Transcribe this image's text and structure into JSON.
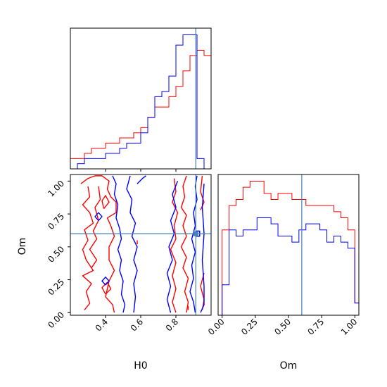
{
  "chart_data": {
    "type": "corner",
    "parameters": [
      "H0",
      "Om"
    ],
    "truth": {
      "H0": 0.913,
      "Om": 0.6
    },
    "colors": {
      "series_a": "#ff0000",
      "series_b": "#0000ff",
      "truth": "#4682b4"
    },
    "panels": [
      {
        "id": "hist-H0",
        "type": "step-histogram",
        "xlim": [
          0.2,
          1.0
        ],
        "bin_width": 0.04,
        "bin_start": 0.2,
        "x_ticks": [
          0.4,
          0.6,
          0.8
        ],
        "series": [
          {
            "color": "#ff0000",
            "values": [
              2,
              2,
              3,
              4,
              4,
              5,
              5,
              6,
              6,
              7,
              8,
              10,
              12,
              12,
              14,
              16,
              19,
              22,
              23,
              22
            ]
          },
          {
            "color": "#0000ff",
            "values": [
              0,
              1,
              2,
              2,
              2,
              3,
              3,
              4,
              5,
              5,
              7,
              10,
              14,
              15,
              18,
              24,
              26,
              26,
              2,
              0
            ]
          }
        ]
      },
      {
        "id": "hist-Om",
        "type": "step-histogram",
        "xlim": [
          -0.03,
          1.03
        ],
        "bin_width": 0.0526,
        "bin_start": 0.0,
        "x_ticks": [
          0.0,
          0.25,
          0.5,
          0.75,
          1.0
        ],
        "x_tick_labels": [
          "0.00",
          "0.25",
          "0.50",
          "0.75",
          "1.00"
        ],
        "x_label": "Om",
        "series": [
          {
            "color": "#ff0000",
            "values": [
              14,
              18,
              19,
              21,
              22,
              22,
              20,
              19,
              20,
              20,
              19,
              19,
              18,
              18,
              18,
              18,
              17,
              16,
              14,
              2
            ]
          },
          {
            "color": "#0000ff",
            "values": [
              5,
              14,
              13,
              14,
              14,
              16,
              16,
              15,
              13,
              13,
              12,
              14,
              15,
              15,
              14,
              12,
              13,
              12,
              11,
              2
            ]
          }
        ]
      },
      {
        "id": "contour-H0-Om",
        "type": "2d-contour",
        "xlim": [
          0.2,
          1.0
        ],
        "ylim": [
          -0.02,
          1.05
        ],
        "x_ticks": [
          0.4,
          0.6,
          0.8
        ],
        "x_tick_labels": [
          "0.4",
          "0.6",
          "0.8"
        ],
        "y_ticks": [
          0.0,
          0.25,
          0.5,
          0.75,
          1.0
        ],
        "y_tick_labels": [
          "0.00",
          "0.25",
          "0.50",
          "0.75",
          "1.00"
        ],
        "x_label": "H0",
        "y_label": "Om",
        "series": [
          {
            "color": "#ff0000",
            "paths": [
              [
                [
                  0.26,
                  0.98
                ],
                [
                  0.3,
                  1.02
                ],
                [
                  0.34,
                  1.04
                ],
                [
                  0.38,
                  1.04
                ],
                [
                  0.42,
                  1.0
                ],
                [
                  0.41,
                  0.94
                ],
                [
                  0.43,
                  0.88
                ],
                [
                  0.46,
                  0.84
                ],
                [
                  0.46,
                  0.76
                ],
                [
                  0.41,
                  0.72
                ],
                [
                  0.43,
                  0.66
                ],
                [
                  0.45,
                  0.58
                ],
                [
                  0.42,
                  0.5
                ],
                [
                  0.42,
                  0.4
                ],
                [
                  0.45,
                  0.32
                ],
                [
                  0.42,
                  0.24
                ],
                [
                  0.4,
                  0.12
                ],
                [
                  0.44,
                  0.06
                ],
                [
                  0.45,
                  0.0
                ]
              ],
              [
                [
                  0.28,
                  0.02
                ],
                [
                  0.31,
                  0.07
                ],
                [
                  0.29,
                  0.16
                ],
                [
                  0.32,
                  0.22
                ],
                [
                  0.27,
                  0.28
                ],
                [
                  0.33,
                  0.32
                ],
                [
                  0.29,
                  0.4
                ],
                [
                  0.27,
                  0.48
                ],
                [
                  0.3,
                  0.55
                ],
                [
                  0.28,
                  0.63
                ],
                [
                  0.33,
                  0.68
                ],
                [
                  0.31,
                  0.76
                ],
                [
                  0.27,
                  0.82
                ],
                [
                  0.31,
                  0.88
                ],
                [
                  0.3,
                  0.96
                ]
              ],
              [
                [
                  0.32,
                  0.34
                ],
                [
                  0.35,
                  0.4
                ],
                [
                  0.31,
                  0.48
                ],
                [
                  0.35,
                  0.56
                ],
                [
                  0.33,
                  0.62
                ],
                [
                  0.36,
                  0.7
                ],
                [
                  0.34,
                  0.8
                ],
                [
                  0.37,
                  0.86
                ],
                [
                  0.36,
                  0.96
                ]
              ],
              [
                [
                  0.4,
                  0.14
                ],
                [
                  0.43,
                  0.18
                ],
                [
                  0.41,
                  0.23
                ],
                [
                  0.38,
                  0.19
                ],
                [
                  0.4,
                  0.14
                ]
              ],
              [
                [
                  0.39,
                  0.79
                ],
                [
                  0.42,
                  0.84
                ],
                [
                  0.4,
                  0.89
                ],
                [
                  0.38,
                  0.85
                ],
                [
                  0.39,
                  0.79
                ]
              ],
              [
                [
                  0.79,
                  1.02
                ],
                [
                  0.8,
                  0.92
                ],
                [
                  0.78,
                  0.84
                ],
                [
                  0.81,
                  0.76
                ],
                [
                  0.79,
                  0.66
                ],
                [
                  0.8,
                  0.56
                ],
                [
                  0.77,
                  0.48
                ],
                [
                  0.8,
                  0.38
                ],
                [
                  0.78,
                  0.28
                ],
                [
                  0.8,
                  0.18
                ],
                [
                  0.78,
                  0.08
                ],
                [
                  0.8,
                  0.0
                ]
              ],
              [
                [
                  0.86,
                  1.04
                ],
                [
                  0.84,
                  0.96
                ],
                [
                  0.85,
                  0.88
                ],
                [
                  0.83,
                  0.8
                ],
                [
                  0.86,
                  0.74
                ],
                [
                  0.84,
                  0.66
                ],
                [
                  0.86,
                  0.58
                ],
                [
                  0.83,
                  0.5
                ],
                [
                  0.86,
                  0.42
                ],
                [
                  0.84,
                  0.34
                ],
                [
                  0.87,
                  0.26
                ],
                [
                  0.85,
                  0.16
                ],
                [
                  0.87,
                  0.08
                ],
                [
                  0.86,
                  0.0
                ]
              ],
              [
                [
                  0.95,
                  1.04
                ],
                [
                  0.94,
                  0.92
                ],
                [
                  0.96,
                  0.84
                ],
                [
                  0.94,
                  0.78
                ]
              ],
              [
                [
                  0.96,
                  0.3
                ],
                [
                  0.94,
                  0.2
                ],
                [
                  0.96,
                  0.1
                ],
                [
                  0.95,
                  0.02
                ]
              ],
              [
                [
                  0.58,
                  0.52
                ],
                [
                  0.58,
                  0.55
                ]
              ],
              [
                [
                  0.87,
                  0.02
                ],
                [
                  0.87,
                  0.05
                ]
              ]
            ]
          },
          {
            "color": "#0000ff",
            "paths": [
              [
                [
                  0.44,
                  1.04
                ],
                [
                  0.46,
                  0.98
                ],
                [
                  0.45,
                  0.9
                ],
                [
                  0.47,
                  0.82
                ],
                [
                  0.46,
                  0.72
                ],
                [
                  0.48,
                  0.64
                ],
                [
                  0.49,
                  0.56
                ],
                [
                  0.47,
                  0.48
                ],
                [
                  0.49,
                  0.4
                ],
                [
                  0.48,
                  0.32
                ],
                [
                  0.5,
                  0.24
                ],
                [
                  0.49,
                  0.14
                ],
                [
                  0.51,
                  0.06
                ],
                [
                  0.5,
                  0.0
                ]
              ],
              [
                [
                  0.54,
                  1.04
                ],
                [
                  0.52,
                  0.94
                ],
                [
                  0.55,
                  0.86
                ],
                [
                  0.54,
                  0.76
                ],
                [
                  0.57,
                  0.68
                ],
                [
                  0.55,
                  0.58
                ],
                [
                  0.58,
                  0.5
                ],
                [
                  0.56,
                  0.4
                ],
                [
                  0.58,
                  0.32
                ],
                [
                  0.56,
                  0.22
                ],
                [
                  0.57,
                  0.12
                ],
                [
                  0.56,
                  0.0
                ]
              ],
              [
                [
                  0.58,
                  0.98
                ],
                [
                  0.61,
                  1.02
                ],
                [
                  0.63,
                  1.04
                ]
              ],
              [
                [
                  0.36,
                  0.7
                ],
                [
                  0.38,
                  0.73
                ],
                [
                  0.36,
                  0.76
                ],
                [
                  0.34,
                  0.73
                ],
                [
                  0.36,
                  0.7
                ]
              ],
              [
                [
                  0.4,
                  0.21
                ],
                [
                  0.42,
                  0.24
                ],
                [
                  0.4,
                  0.27
                ],
                [
                  0.38,
                  0.24
                ],
                [
                  0.4,
                  0.21
                ]
              ],
              [
                [
                  0.77,
                  0.0
                ],
                [
                  0.75,
                  0.1
                ],
                [
                  0.77,
                  0.2
                ],
                [
                  0.75,
                  0.3
                ],
                [
                  0.78,
                  0.4
                ],
                [
                  0.76,
                  0.5
                ],
                [
                  0.79,
                  0.6
                ],
                [
                  0.77,
                  0.7
                ],
                [
                  0.8,
                  0.8
                ],
                [
                  0.78,
                  0.9
                ],
                [
                  0.81,
                  1.0
                ]
              ],
              [
                [
                  0.91,
                  0.0
                ],
                [
                  0.9,
                  0.08
                ],
                [
                  0.88,
                  0.16
                ],
                [
                  0.9,
                  0.26
                ],
                [
                  0.89,
                  0.36
                ],
                [
                  0.91,
                  0.46
                ],
                [
                  0.89,
                  0.56
                ],
                [
                  0.91,
                  0.66
                ],
                [
                  0.9,
                  0.76
                ],
                [
                  0.92,
                  0.86
                ],
                [
                  0.91,
                  0.96
                ],
                [
                  0.92,
                  1.04
                ]
              ],
              [
                [
                  0.94,
                  0.0
                ],
                [
                  0.96,
                  0.06
                ],
                [
                  0.96,
                  0.2
                ],
                [
                  0.95,
                  0.4
                ],
                [
                  0.96,
                  0.6
                ],
                [
                  0.95,
                  0.8
                ],
                [
                  0.96,
                  0.98
                ]
              ],
              [
                [
                  0.915,
                  0.58
                ],
                [
                  0.935,
                  0.58
                ],
                [
                  0.935,
                  0.62
                ],
                [
                  0.915,
                  0.62
                ],
                [
                  0.915,
                  0.58
                ]
              ]
            ]
          }
        ]
      }
    ]
  }
}
